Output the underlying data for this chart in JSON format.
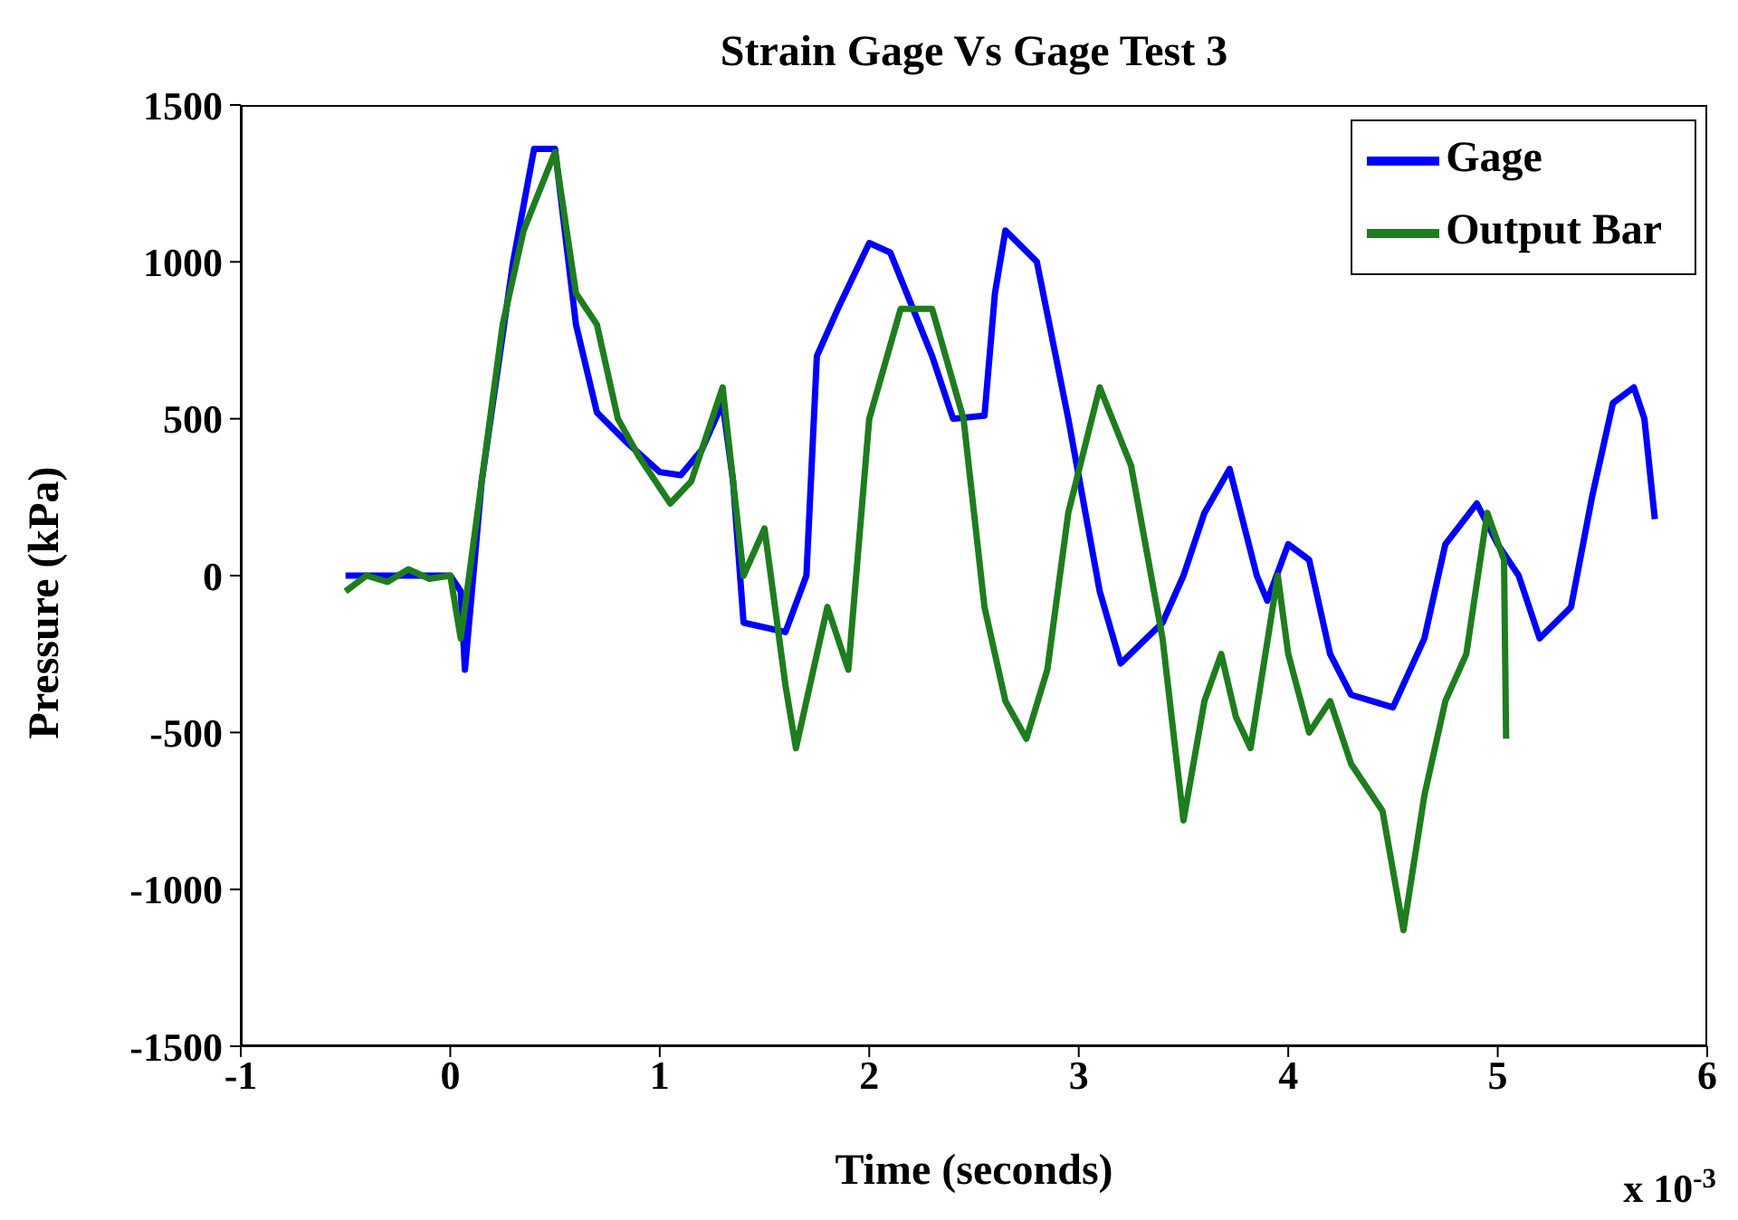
{
  "chart_data": {
    "type": "line",
    "title": "Strain Gage Vs Gage Test 3",
    "xlabel": "Time (seconds)",
    "ylabel": "Pressure (kPa)",
    "annotations": [
      "x 10$^{-3}$"
    ],
    "xlim": [
      -1,
      6
    ],
    "xticks": [
      -1,
      0,
      1,
      2,
      3,
      4,
      5,
      6
    ],
    "ylim": [
      -1500,
      1500
    ],
    "yticks": [
      -1500,
      -1000,
      -500,
      0,
      500,
      1000,
      1500
    ],
    "legend": "top right",
    "marker": "none",
    "line_style": "solid",
    "series": [
      {
        "name": "Gage",
        "color": "#0000ff",
        "x": [
          -0.5,
          -0.2,
          0.0,
          0.05,
          0.07,
          0.15,
          0.3,
          0.4,
          0.5,
          0.6,
          0.7,
          0.85,
          1.0,
          1.1,
          1.2,
          1.3,
          1.35,
          1.4,
          1.6,
          1.7,
          1.75,
          1.85,
          2.0,
          2.1,
          2.3,
          2.4,
          2.55,
          2.6,
          2.65,
          2.8,
          2.95,
          3.1,
          3.2,
          3.4,
          3.5,
          3.6,
          3.72,
          3.85,
          3.9,
          4.0,
          4.1,
          4.2,
          4.3,
          4.5,
          4.65,
          4.75,
          4.9,
          5.0,
          5.1,
          5.2,
          5.35,
          5.45,
          5.55,
          5.65,
          5.7,
          5.75
        ],
        "values": [
          0,
          0,
          0,
          -50,
          -300,
          300,
          1000,
          1360,
          1360,
          800,
          520,
          420,
          330,
          320,
          400,
          550,
          300,
          -150,
          -180,
          0,
          700,
          850,
          1060,
          1030,
          700,
          500,
          510,
          900,
          1100,
          1000,
          500,
          -50,
          -280,
          -150,
          0,
          200,
          340,
          0,
          -80,
          100,
          50,
          -250,
          -380,
          -420,
          -200,
          100,
          230,
          100,
          0,
          -200,
          -100,
          250,
          550,
          600,
          500,
          180
        ]
      },
      {
        "name": "Output Bar",
        "color": "#1e7d1e",
        "x": [
          -0.5,
          -0.4,
          -0.3,
          -0.2,
          -0.1,
          0.0,
          0.05,
          0.15,
          0.25,
          0.35,
          0.5,
          0.6,
          0.7,
          0.8,
          0.9,
          1.05,
          1.15,
          1.25,
          1.3,
          1.4,
          1.5,
          1.6,
          1.65,
          1.8,
          1.9,
          2.0,
          2.15,
          2.3,
          2.45,
          2.55,
          2.65,
          2.75,
          2.85,
          2.95,
          3.1,
          3.25,
          3.4,
          3.5,
          3.6,
          3.68,
          3.75,
          3.82,
          3.95,
          4.0,
          4.1,
          4.2,
          4.3,
          4.45,
          4.55,
          4.65,
          4.75,
          4.85,
          4.95,
          5.03,
          5.04
        ],
        "values": [
          -50,
          0,
          -20,
          20,
          -10,
          0,
          -200,
          300,
          800,
          1100,
          1350,
          900,
          800,
          500,
          380,
          230,
          300,
          500,
          600,
          0,
          150,
          -350,
          -550,
          -100,
          -300,
          500,
          850,
          850,
          500,
          -100,
          -400,
          -520,
          -300,
          200,
          600,
          350,
          -200,
          -780,
          -400,
          -250,
          -450,
          -550,
          0,
          -250,
          -500,
          -400,
          -600,
          -750,
          -1130,
          -700,
          -400,
          -250,
          200,
          50,
          -520
        ]
      }
    ]
  }
}
